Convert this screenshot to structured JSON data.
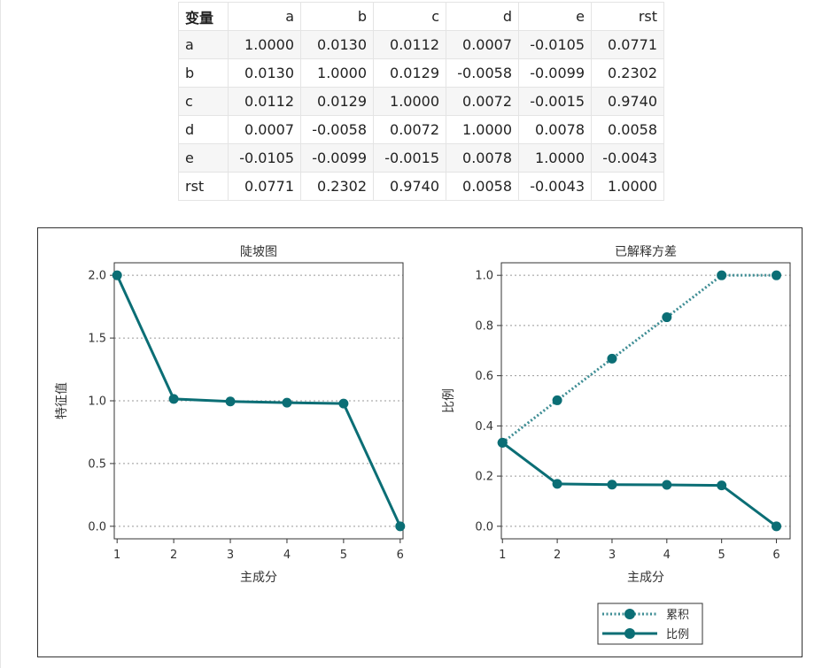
{
  "table": {
    "columns": [
      "变量",
      "a",
      "b",
      "c",
      "d",
      "e",
      "rst"
    ],
    "rows": [
      [
        "a",
        "1.0000",
        "0.0130",
        "0.0112",
        "0.0007",
        "-0.0105",
        "0.0771"
      ],
      [
        "b",
        "0.0130",
        "1.0000",
        "0.0129",
        "-0.0058",
        "-0.0099",
        "0.2302"
      ],
      [
        "c",
        "0.0112",
        "0.0129",
        "1.0000",
        "0.0072",
        "-0.0015",
        "0.9740"
      ],
      [
        "d",
        "0.0007",
        "-0.0058",
        "0.0072",
        "1.0000",
        "0.0078",
        "0.0058"
      ],
      [
        "e",
        "-0.0105",
        "-0.0099",
        "-0.0015",
        "0.0078",
        "1.0000",
        "-0.0043"
      ],
      [
        "rst",
        "0.0771",
        "0.2302",
        "0.9740",
        "0.0058",
        "-0.0043",
        "1.0000"
      ]
    ]
  },
  "chart_data": [
    {
      "type": "line",
      "title": "陡坡图",
      "xlabel": "主成分",
      "ylabel": "特征值",
      "x": [
        1,
        2,
        3,
        4,
        5,
        6
      ],
      "xticks": [
        "1",
        "2",
        "3",
        "4",
        "5",
        "6"
      ],
      "yticks": [
        "0.0",
        "0.5",
        "1.0",
        "1.5",
        "2.0"
      ],
      "ytick_values": [
        0,
        0.5,
        1.0,
        1.5,
        2.0
      ],
      "ylim": [
        -0.1,
        2.1
      ],
      "xlim": [
        0.95,
        6.05
      ],
      "grid": "horizontal-dotted",
      "series": [
        {
          "values": [
            2.0,
            1.015,
            0.995,
            0.985,
            0.978,
            0.0
          ],
          "color": "#0b6e75",
          "style": "solid"
        }
      ]
    },
    {
      "type": "line",
      "title": "已解释方差",
      "xlabel": "主成分",
      "ylabel": "比例",
      "x": [
        1,
        2,
        3,
        4,
        5,
        6
      ],
      "xticks": [
        "1",
        "2",
        "3",
        "4",
        "5",
        "6"
      ],
      "yticks": [
        "0.0",
        "0.2",
        "0.4",
        "0.6",
        "0.8",
        "1.0"
      ],
      "ytick_values": [
        0,
        0.2,
        0.4,
        0.6,
        0.8,
        1.0
      ],
      "ylim": [
        -0.05,
        1.05
      ],
      "xlim": [
        0.98,
        6.25
      ],
      "grid": "horizontal-dotted",
      "legend": "bottom",
      "series": [
        {
          "name": "累积",
          "values": [
            0.333,
            0.502,
            0.668,
            0.833,
            1.0,
            1.0
          ],
          "color": "#3e8d94",
          "style": "dotted"
        },
        {
          "name": "比例",
          "values": [
            0.333,
            0.169,
            0.166,
            0.165,
            0.163,
            0.0
          ],
          "color": "#0b6e75",
          "style": "solid"
        }
      ]
    }
  ]
}
